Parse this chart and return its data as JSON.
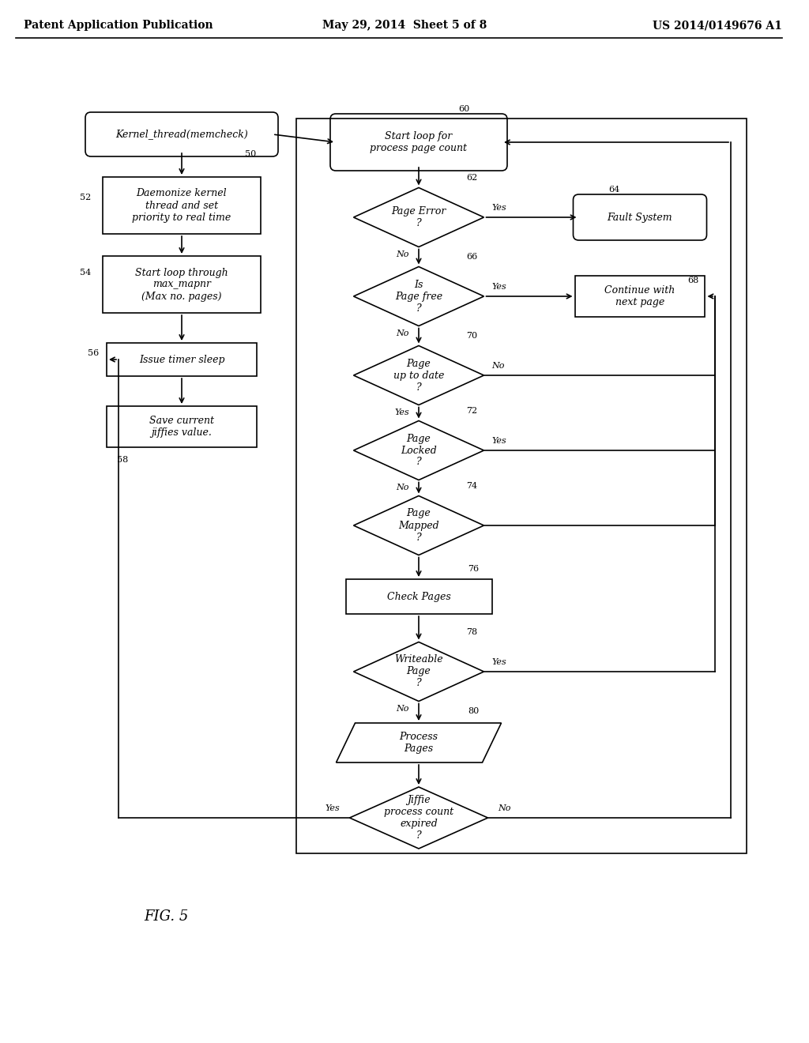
{
  "title_left": "Patent Application Publication",
  "title_mid": "May 29, 2014  Sheet 5 of 8",
  "title_right": "US 2014/0149676 A1",
  "fig_label": "FIG. 5",
  "bg_color": "#ffffff",
  "line_color": "#000000",
  "text_color": "#000000",
  "font_size": 9,
  "header_font_size": 10
}
